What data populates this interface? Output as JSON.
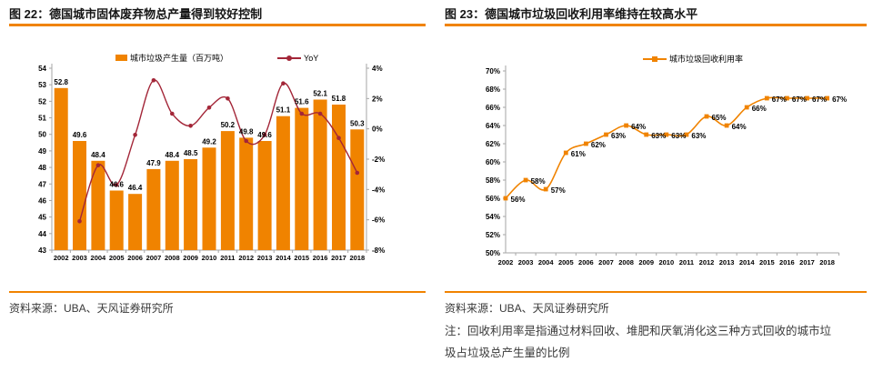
{
  "colors": {
    "accent_orange": "#F08300",
    "yoy_red": "#A32638",
    "axis_gray": "#A6A6A6",
    "title_text": "#151515",
    "body_text": "#3A3A3A",
    "data_label": "#000000"
  },
  "footer": {
    "left_source": "资料来源：UBA、天风证券研究所",
    "right_source": "资料来源：UBA、天风证券研究所",
    "right_note": "注：回收利用率是指通过材料回收、堆肥和厌氧消化这三种方式回收的城市垃圾占垃圾总产生量的比例"
  },
  "chart_data": [
    {
      "type": "bar",
      "title": "图 22：德国城市固体废弃物总产量得到较好控制",
      "categories": [
        "2002",
        "2003",
        "2004",
        "2005",
        "2006",
        "2007",
        "2008",
        "2009",
        "2010",
        "2011",
        "2012",
        "2013",
        "2014",
        "2015",
        "2016",
        "2017",
        "2018"
      ],
      "series": [
        {
          "name": "城市垃圾产生量（百万吨）",
          "type": "bar",
          "axis": "left",
          "color": "#F08300",
          "values": [
            52.8,
            49.6,
            48.4,
            46.6,
            46.4,
            47.9,
            48.4,
            48.5,
            49.2,
            50.2,
            49.8,
            49.6,
            51.1,
            51.6,
            52.1,
            51.8,
            50.3
          ]
        },
        {
          "name": "YoY",
          "type": "line",
          "axis": "right",
          "color": "#A32638",
          "values": [
            null,
            -6.1,
            -2.4,
            -3.7,
            -0.4,
            3.2,
            1.0,
            0.2,
            1.4,
            2.0,
            -0.8,
            -0.4,
            3.0,
            1.0,
            1.0,
            -0.6,
            -2.9
          ]
        }
      ],
      "left_axis": {
        "min": 43,
        "max": 54,
        "step": 1
      },
      "right_axis": {
        "min": -8,
        "max": 4,
        "step": 2,
        "suffix": "%"
      },
      "grid": false,
      "legend_position": "top"
    },
    {
      "type": "line",
      "title": "图 23：德国城市垃圾回收利用率维持在较高水平",
      "categories": [
        "2002",
        "2003",
        "2004",
        "2005",
        "2006",
        "2007",
        "2008",
        "2009",
        "2010",
        "2011",
        "2012",
        "2013",
        "2014",
        "2015",
        "2016",
        "2017",
        "2018"
      ],
      "series": [
        {
          "name": "城市垃圾回收利用率",
          "type": "line",
          "color": "#F08300",
          "values": [
            56,
            58,
            57,
            61,
            62,
            63,
            64,
            63,
            63,
            63,
            65,
            64,
            66,
            67,
            67,
            67,
            67
          ],
          "labels_suffix": "%"
        }
      ],
      "y_axis": {
        "min": 50,
        "max": 70,
        "step": 2,
        "suffix": "%"
      },
      "grid": false,
      "legend_position": "top"
    }
  ]
}
